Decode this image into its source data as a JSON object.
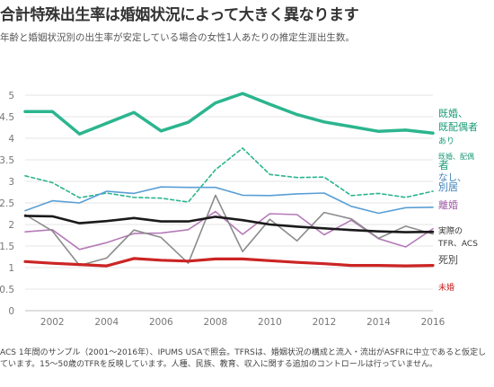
{
  "title": "合計特殊出生率は婚姻状況によって大きく異なります",
  "subtitle": "年齢と婚姻状況別の出生率が安定している場合の女性1人あたりの推定生涯出生数。",
  "footnote": "ACS 1年間のサンプル（2001～2016年）、IPUMS USAで照会。TFRSは、婚姻状況の構成と流入・流出がASFRに中立であると仮定しています。15～50歳のTFRを反映しています。人種、民族、教育、収入に関する追加のコントロールは行っていません。",
  "chart_data": {
    "type": "line",
    "x": [
      2001,
      2002,
      2003,
      2004,
      2005,
      2006,
      2007,
      2008,
      2009,
      2010,
      2011,
      2012,
      2013,
      2014,
      2015,
      2016
    ],
    "ylim": [
      0,
      5.5
    ],
    "yticks": [
      0,
      0.5,
      1,
      1.5,
      2,
      2.5,
      3,
      3.5,
      4,
      4.5,
      5
    ],
    "xticks": [
      2002,
      2004,
      2006,
      2008,
      2010,
      2012,
      2014,
      2016
    ],
    "grid": true,
    "series": [
      {
        "name": "既婚、既配偶者あり",
        "color": "#2bb58e",
        "width": 3.5,
        "dash": "",
        "values": [
          4.62,
          4.62,
          4.1,
          4.35,
          4.6,
          4.17,
          4.37,
          4.82,
          5.04,
          4.79,
          4.55,
          4.38,
          4.27,
          4.16,
          4.19,
          4.12
        ]
      },
      {
        "name": "既婚、配偶者なし、別居",
        "color": "#2bb58e",
        "width": 1.6,
        "dash": "4,3",
        "values": [
          3.13,
          2.97,
          2.62,
          2.73,
          2.63,
          2.61,
          2.52,
          3.27,
          3.77,
          3.16,
          3.09,
          3.1,
          2.67,
          2.72,
          2.63,
          2.77
        ]
      },
      {
        "name": "",
        "color": "#5a9fd4",
        "width": 1.6,
        "dash": "",
        "values": [
          2.32,
          2.55,
          2.5,
          2.77,
          2.72,
          2.87,
          2.86,
          2.86,
          2.68,
          2.67,
          2.71,
          2.73,
          2.42,
          2.26,
          2.39,
          2.4
        ]
      },
      {
        "name": "離婚",
        "color": "#b57bb8",
        "width": 1.6,
        "dash": "",
        "values": [
          1.83,
          1.88,
          1.42,
          1.58,
          1.79,
          1.8,
          1.88,
          2.3,
          1.77,
          2.25,
          2.23,
          1.76,
          2.1,
          1.67,
          1.48,
          1.9
        ]
      },
      {
        "name": "死別",
        "color": "#8c8c8c",
        "width": 1.6,
        "dash": "",
        "values": [
          2.23,
          1.85,
          1.05,
          1.22,
          1.87,
          1.7,
          1.1,
          2.68,
          1.37,
          2.12,
          1.62,
          2.28,
          2.13,
          1.68,
          1.96,
          1.78
        ]
      },
      {
        "name": "実際のTFR、ACS",
        "color": "#1a1a1a",
        "width": 2.6,
        "dash": "",
        "values": [
          2.2,
          2.19,
          2.03,
          2.08,
          2.15,
          2.07,
          2.07,
          2.18,
          2.1,
          2.0,
          1.95,
          1.91,
          1.87,
          1.84,
          1.82,
          1.83
        ]
      },
      {
        "name": "未婚",
        "color": "#cc2424",
        "width": 3.2,
        "dash": "",
        "values": [
          1.14,
          1.1,
          1.07,
          1.04,
          1.21,
          1.17,
          1.15,
          1.2,
          1.2,
          1.16,
          1.12,
          1.09,
          1.05,
          1.05,
          1.04,
          1.05
        ]
      }
    ],
    "labels": [
      {
        "text": "既婚、",
        "series": 0,
        "color": "#1e9c78",
        "size": 11
      },
      {
        "text": "既配偶者",
        "series": 0,
        "color": "#1e9c78",
        "size": 11
      },
      {
        "text": "あり",
        "series": 0,
        "color": "#1e9c78",
        "size": 9
      },
      {
        "text": "既婚、配偶",
        "series": 1,
        "color": "#1e9c78",
        "size": 8
      },
      {
        "text": "者",
        "series": 1,
        "color": "#1e9c78",
        "size": 12
      },
      {
        "text": "なし、",
        "series": 2,
        "color": "#3f7fb6",
        "size": 10.5
      },
      {
        "text": "別居",
        "series": 2,
        "color": "#3f7fb6",
        "size": 11
      },
      {
        "text": "離婚",
        "series": 3,
        "color": "#a05fa5",
        "size": 11
      },
      {
        "text": "実際の",
        "series": 5,
        "color": "#333333",
        "size": 9
      },
      {
        "text": "TFR、ACS",
        "series": 5,
        "color": "#333333",
        "size": 9
      },
      {
        "text": "死別",
        "series": 4,
        "color": "#444444",
        "size": 11
      },
      {
        "text": "未婚",
        "series": 6,
        "color": "#cc2424",
        "size": 9
      }
    ]
  }
}
